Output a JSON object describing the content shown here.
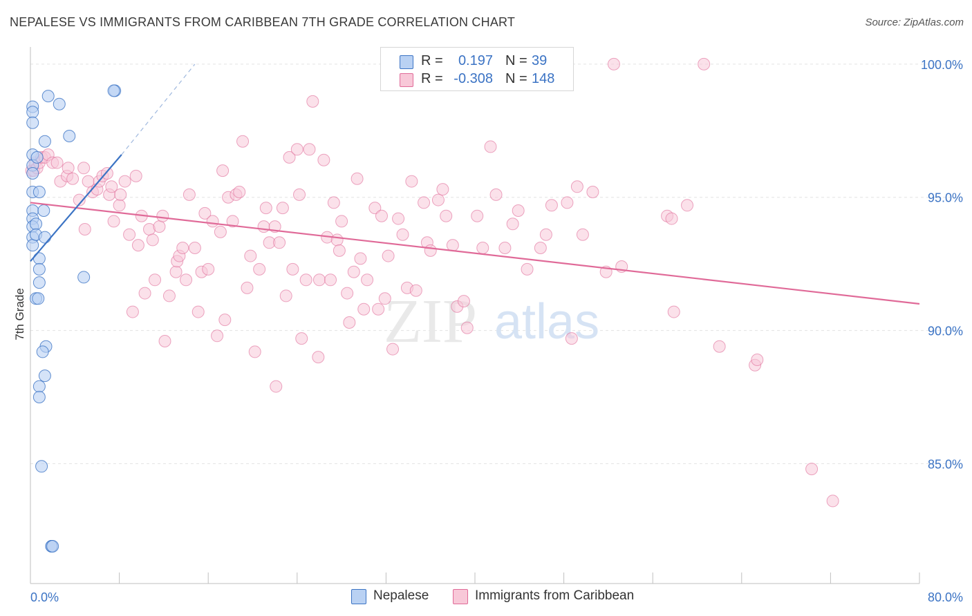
{
  "title": "NEPALESE VS IMMIGRANTS FROM CARIBBEAN 7TH GRADE CORRELATION CHART",
  "source": "Source: ZipAtlas.com",
  "watermark": "ZIPatlas",
  "legend": {
    "rows": [
      {
        "r_label": "R =",
        "r_value": "0.197",
        "n_label": "N =",
        "n_value": "39"
      },
      {
        "r_label": "R =",
        "r_value": "-0.308",
        "n_label": "N =",
        "n_value": "148"
      }
    ]
  },
  "bottom_legend": [
    "Nepalese",
    "Immigrants from Caribbean"
  ],
  "colors": {
    "blue": "#3b73c4",
    "blue_fill": "#b9d1f3",
    "pink": "#e06a98",
    "pink_fill": "#f8c8d8",
    "axis_text": "#3b73c4",
    "grid": "#e2e2e2"
  },
  "chart_data": {
    "type": "scatter",
    "title": "NEPALESE VS IMMIGRANTS FROM CARIBBEAN 7TH GRADE CORRELATION CHART",
    "xlabel": "",
    "ylabel": "7th Grade",
    "xlim": [
      0,
      80
    ],
    "ylim": [
      80.5,
      100.8
    ],
    "x_tick_labels": [
      {
        "value": 0,
        "label": "0.0%"
      },
      {
        "value": 80,
        "label": "80.0%"
      }
    ],
    "y_tick_labels": [
      {
        "value": 100,
        "label": "100.0%"
      },
      {
        "value": 95,
        "label": "95.0%"
      },
      {
        "value": 90,
        "label": "90.0%"
      },
      {
        "value": 85,
        "label": "85.0%"
      }
    ],
    "series": [
      {
        "name": "Nepalese",
        "color": "#3b73c4",
        "trend": {
          "x0": 0.0,
          "y0": 92.6,
          "x1": 8.2,
          "y1": 96.6,
          "dash_to_x": 14.8,
          "dash_to_y": 100.0
        },
        "points": [
          [
            0.2,
            98.4
          ],
          [
            0.2,
            98.2
          ],
          [
            0.2,
            97.8
          ],
          [
            0.2,
            96.6
          ],
          [
            0.2,
            96.2
          ],
          [
            0.2,
            95.9
          ],
          [
            0.2,
            95.2
          ],
          [
            0.2,
            94.5
          ],
          [
            0.2,
            94.2
          ],
          [
            0.2,
            93.9
          ],
          [
            0.2,
            93.5
          ],
          [
            0.2,
            93.2
          ],
          [
            0.5,
            94.0
          ],
          [
            0.5,
            93.6
          ],
          [
            0.8,
            95.2
          ],
          [
            0.8,
            92.7
          ],
          [
            0.8,
            92.3
          ],
          [
            0.8,
            91.8
          ],
          [
            0.5,
            91.2
          ],
          [
            0.7,
            91.2
          ],
          [
            1.2,
            94.5
          ],
          [
            1.3,
            93.5
          ],
          [
            1.3,
            97.1
          ],
          [
            1.6,
            98.8
          ],
          [
            2.6,
            98.5
          ],
          [
            3.5,
            97.3
          ],
          [
            4.8,
            92.0
          ],
          [
            7.6,
            99.0
          ],
          [
            7.5,
            99.0
          ],
          [
            1.4,
            89.4
          ],
          [
            1.1,
            89.2
          ],
          [
            1.3,
            88.3
          ],
          [
            0.8,
            87.9
          ],
          [
            0.8,
            87.5
          ],
          [
            1.0,
            84.9
          ],
          [
            1.9,
            81.9
          ],
          [
            1.9,
            81.9
          ],
          [
            2.0,
            81.9
          ],
          [
            0.6,
            96.5
          ]
        ]
      },
      {
        "name": "Immigrants from Caribbean",
        "color": "#e06a98",
        "trend": {
          "x0": 0.0,
          "y0": 94.8,
          "x1": 80.0,
          "y1": 91.0
        },
        "points": [
          [
            0.1,
            96.0
          ],
          [
            0.3,
            96.0
          ],
          [
            0.4,
            96.3
          ],
          [
            0.6,
            96.1
          ],
          [
            0.8,
            96.3
          ],
          [
            1.0,
            96.5
          ],
          [
            1.3,
            96.5
          ],
          [
            1.6,
            96.6
          ],
          [
            2.0,
            96.3
          ],
          [
            2.4,
            96.3
          ],
          [
            2.7,
            95.6
          ],
          [
            3.3,
            95.8
          ],
          [
            3.4,
            96.1
          ],
          [
            3.8,
            95.7
          ],
          [
            4.4,
            94.9
          ],
          [
            4.8,
            96.1
          ],
          [
            4.9,
            93.8
          ],
          [
            5.2,
            95.6
          ],
          [
            5.6,
            95.2
          ],
          [
            6.0,
            95.3
          ],
          [
            6.2,
            95.6
          ],
          [
            6.5,
            95.8
          ],
          [
            6.9,
            95.9
          ],
          [
            7.1,
            95.1
          ],
          [
            7.3,
            95.4
          ],
          [
            7.5,
            94.1
          ],
          [
            8.0,
            94.7
          ],
          [
            8.1,
            95.1
          ],
          [
            8.5,
            95.6
          ],
          [
            8.9,
            93.6
          ],
          [
            9.2,
            90.7
          ],
          [
            9.5,
            95.8
          ],
          [
            9.7,
            93.2
          ],
          [
            10.0,
            94.3
          ],
          [
            10.3,
            91.4
          ],
          [
            10.7,
            93.8
          ],
          [
            11.0,
            93.4
          ],
          [
            11.2,
            91.9
          ],
          [
            11.6,
            93.9
          ],
          [
            11.9,
            94.3
          ],
          [
            12.1,
            89.6
          ],
          [
            12.5,
            91.3
          ],
          [
            13.1,
            92.2
          ],
          [
            13.2,
            92.6
          ],
          [
            13.4,
            92.8
          ],
          [
            13.7,
            93.1
          ],
          [
            14.0,
            91.9
          ],
          [
            14.3,
            95.1
          ],
          [
            14.8,
            93.1
          ],
          [
            15.1,
            90.7
          ],
          [
            15.4,
            92.2
          ],
          [
            15.7,
            94.4
          ],
          [
            16.0,
            92.3
          ],
          [
            16.4,
            94.1
          ],
          [
            16.8,
            89.8
          ],
          [
            17.1,
            93.7
          ],
          [
            17.3,
            96.0
          ],
          [
            17.5,
            90.4
          ],
          [
            17.8,
            95.0
          ],
          [
            18.2,
            94.1
          ],
          [
            18.5,
            95.1
          ],
          [
            18.8,
            95.2
          ],
          [
            19.1,
            97.1
          ],
          [
            19.5,
            91.6
          ],
          [
            19.8,
            92.8
          ],
          [
            20.2,
            89.2
          ],
          [
            20.6,
            92.3
          ],
          [
            21.0,
            93.9
          ],
          [
            21.2,
            94.6
          ],
          [
            21.5,
            93.3
          ],
          [
            22.0,
            93.9
          ],
          [
            22.1,
            87.9
          ],
          [
            22.4,
            93.3
          ],
          [
            22.7,
            94.6
          ],
          [
            23.0,
            91.3
          ],
          [
            23.3,
            96.5
          ],
          [
            23.6,
            92.3
          ],
          [
            24.0,
            96.8
          ],
          [
            24.2,
            95.1
          ],
          [
            24.4,
            89.7
          ],
          [
            24.8,
            91.9
          ],
          [
            25.1,
            96.8
          ],
          [
            25.4,
            98.6
          ],
          [
            25.9,
            89.0
          ],
          [
            26.0,
            91.9
          ],
          [
            26.4,
            96.4
          ],
          [
            26.7,
            93.5
          ],
          [
            27.0,
            91.9
          ],
          [
            27.3,
            94.8
          ],
          [
            27.6,
            93.4
          ],
          [
            27.8,
            93.0
          ],
          [
            28.0,
            94.1
          ],
          [
            28.5,
            91.4
          ],
          [
            28.7,
            90.3
          ],
          [
            29.1,
            92.2
          ],
          [
            29.4,
            95.7
          ],
          [
            29.7,
            92.7
          ],
          [
            30.0,
            90.8
          ],
          [
            30.3,
            91.9
          ],
          [
            31.0,
            94.6
          ],
          [
            31.3,
            90.8
          ],
          [
            31.6,
            94.3
          ],
          [
            31.9,
            91.2
          ],
          [
            32.2,
            92.8
          ],
          [
            32.6,
            89.3
          ],
          [
            33.1,
            94.2
          ],
          [
            33.5,
            93.6
          ],
          [
            33.9,
            91.6
          ],
          [
            34.3,
            95.6
          ],
          [
            34.7,
            91.5
          ],
          [
            35.4,
            94.8
          ],
          [
            35.7,
            93.3
          ],
          [
            36.0,
            93.0
          ],
          [
            36.7,
            94.9
          ],
          [
            37.1,
            95.3
          ],
          [
            37.4,
            94.3
          ],
          [
            38.0,
            93.2
          ],
          [
            38.4,
            90.9
          ],
          [
            39.0,
            91.1
          ],
          [
            39.3,
            90.1
          ],
          [
            40.2,
            94.3
          ],
          [
            40.7,
            93.1
          ],
          [
            41.4,
            96.9
          ],
          [
            41.9,
            95.1
          ],
          [
            42.7,
            93.1
          ],
          [
            43.4,
            94.0
          ],
          [
            43.9,
            94.5
          ],
          [
            44.7,
            92.3
          ],
          [
            45.9,
            93.1
          ],
          [
            46.4,
            93.6
          ],
          [
            46.9,
            94.7
          ],
          [
            48.3,
            94.8
          ],
          [
            48.7,
            89.7
          ],
          [
            49.2,
            95.4
          ],
          [
            49.7,
            93.6
          ],
          [
            50.6,
            95.2
          ],
          [
            51.8,
            92.2
          ],
          [
            53.2,
            92.4
          ],
          [
            52.5,
            100.0
          ],
          [
            57.3,
            94.3
          ],
          [
            57.7,
            94.2
          ],
          [
            57.9,
            90.7
          ],
          [
            59.1,
            94.7
          ],
          [
            60.6,
            100.0
          ],
          [
            62.0,
            89.4
          ],
          [
            65.2,
            88.7
          ],
          [
            65.4,
            88.9
          ],
          [
            70.3,
            84.8
          ],
          [
            72.2,
            83.6
          ]
        ]
      }
    ]
  }
}
